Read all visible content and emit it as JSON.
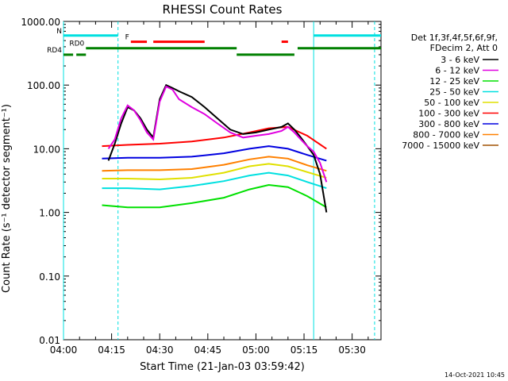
{
  "chart_data": {
    "type": "line",
    "title": "RHESSI Count Rates",
    "xlabel": "Start Time (21-Jan-03 03:59:42)",
    "ylabel": "Count Rate (s⁻¹ detector segment⁻¹)",
    "y_scale": "log",
    "ylim": [
      0.01,
      1000
    ],
    "xlim": [
      "04:00",
      "05:39"
    ],
    "x_ticks": [
      "04:00",
      "04:15",
      "04:30",
      "04:45",
      "05:00",
      "05:15",
      "05:30"
    ],
    "y_ticks": [
      "0.01",
      "0.10",
      "1.00",
      "10.00",
      "100.00",
      "1000.00"
    ],
    "legend_header": [
      "Det 1f,3f,4f,5f,6f,9f,",
      "FDecim 2, Att 0"
    ],
    "legend_position": "right",
    "footer_timestamp": "14-Oct-2021 10:45",
    "series": [
      {
        "name": "3 - 6 keV",
        "color": "#000000",
        "x": [
          "04:14",
          "04:16",
          "04:18",
          "04:20",
          "04:22",
          "04:24",
          "04:26",
          "04:28",
          "04:30",
          "04:32",
          "04:34",
          "04:36",
          "04:40",
          "04:44",
          "04:48",
          "04:52",
          "04:56",
          "05:00",
          "05:04",
          "05:08",
          "05:10",
          "05:12",
          "05:14",
          "05:16",
          "05:18",
          "05:20",
          "05:22"
        ],
        "values": [
          6.5,
          12,
          25,
          45,
          40,
          30,
          20,
          15,
          60,
          100,
          90,
          80,
          65,
          45,
          30,
          20,
          17,
          18,
          20,
          22,
          25,
          20,
          15,
          11,
          8,
          4,
          1
        ]
      },
      {
        "name": "6 - 12 keV",
        "color": "#e000e0",
        "x": [
          "04:14",
          "04:16",
          "04:18",
          "04:20",
          "04:22",
          "04:24",
          "04:26",
          "04:28",
          "04:30",
          "04:32",
          "04:34",
          "04:36",
          "04:40",
          "04:44",
          "04:48",
          "04:52",
          "04:56",
          "05:00",
          "05:04",
          "05:08",
          "05:10",
          "05:12",
          "05:14",
          "05:16",
          "05:18",
          "05:20",
          "05:22"
        ],
        "values": [
          10,
          14,
          30,
          48,
          40,
          28,
          18,
          14,
          55,
          95,
          85,
          60,
          45,
          35,
          25,
          18,
          15,
          16,
          17,
          19,
          22,
          18,
          14,
          11,
          9,
          6,
          3
        ]
      },
      {
        "name": "12 - 25 keV",
        "color": "#00e000",
        "x": [
          "04:12",
          "04:20",
          "04:30",
          "04:40",
          "04:50",
          "04:58",
          "05:04",
          "05:10",
          "05:16",
          "05:22"
        ],
        "values": [
          1.3,
          1.2,
          1.2,
          1.4,
          1.7,
          2.3,
          2.7,
          2.5,
          1.8,
          1.2
        ]
      },
      {
        "name": "25 - 50 keV",
        "color": "#00e0e0",
        "x": [
          "04:12",
          "04:20",
          "04:30",
          "04:40",
          "04:50",
          "04:58",
          "05:04",
          "05:10",
          "05:16",
          "05:22"
        ],
        "values": [
          2.4,
          2.4,
          2.3,
          2.6,
          3.1,
          3.8,
          4.2,
          3.8,
          3.0,
          2.4
        ]
      },
      {
        "name": "50 - 100 keV",
        "color": "#e0e000",
        "x": [
          "04:12",
          "04:20",
          "04:30",
          "04:40",
          "04:50",
          "04:58",
          "05:04",
          "05:10",
          "05:16",
          "05:22"
        ],
        "values": [
          3.4,
          3.4,
          3.3,
          3.5,
          4.2,
          5.3,
          5.8,
          5.3,
          4.3,
          3.5
        ]
      },
      {
        "name": "100 - 300 keV",
        "color": "#ff0000",
        "x": [
          "04:12",
          "04:20",
          "04:30",
          "04:40",
          "04:50",
          "04:58",
          "05:04",
          "05:10",
          "05:16",
          "05:22"
        ],
        "values": [
          11,
          11.5,
          12,
          13,
          15,
          18,
          21,
          22,
          16,
          10
        ]
      },
      {
        "name": "300 - 800 keV",
        "color": "#0000e0",
        "x": [
          "04:12",
          "04:20",
          "04:30",
          "04:40",
          "04:50",
          "04:58",
          "05:04",
          "05:10",
          "05:16",
          "05:22"
        ],
        "values": [
          7,
          7.2,
          7.2,
          7.5,
          8.5,
          10,
          11,
          10,
          8,
          6.5
        ]
      },
      {
        "name": "800 - 7000 keV",
        "color": "#ff8000",
        "x": [
          "04:12",
          "04:20",
          "04:30",
          "04:40",
          "04:50",
          "04:58",
          "05:04",
          "05:10",
          "05:16",
          "05:22"
        ],
        "values": [
          4.5,
          4.6,
          4.6,
          4.8,
          5.6,
          6.8,
          7.5,
          7.0,
          5.5,
          4.5
        ]
      },
      {
        "name": "7000 - 15000 keV",
        "color": "#a05000",
        "x": [],
        "values": []
      }
    ],
    "flag_bars": [
      {
        "label": "N",
        "color": "#00e0e0",
        "y": 600,
        "segments": [
          [
            "04:00",
            "04:17"
          ],
          [
            "05:18",
            "05:39"
          ]
        ]
      },
      {
        "label": "F",
        "color": "#ff0000",
        "y": 480,
        "segments": [
          [
            "04:21",
            "04:26"
          ],
          [
            "04:28",
            "04:44"
          ],
          [
            "05:08",
            "05:10"
          ]
        ]
      },
      {
        "label": "RD0",
        "color": "#008000",
        "y": 380,
        "segments": [
          [
            "04:07",
            "04:54"
          ],
          [
            "05:13",
            "05:39"
          ]
        ]
      },
      {
        "label": "RD4",
        "color": "#008000",
        "y": 300,
        "segments": [
          [
            "04:00",
            "04:03"
          ],
          [
            "04:04",
            "04:07"
          ],
          [
            "04:54",
            "05:12"
          ]
        ]
      }
    ],
    "grid": false
  }
}
